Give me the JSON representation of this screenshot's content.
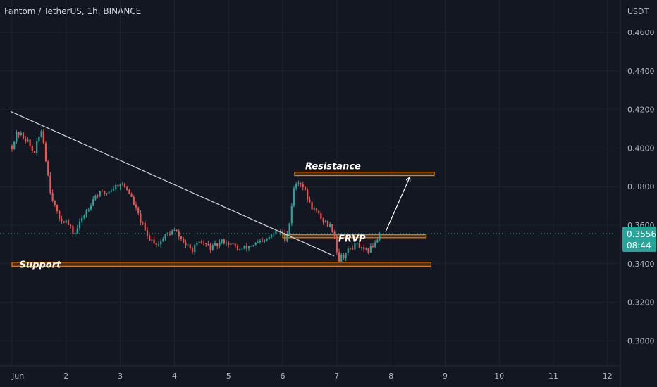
{
  "header": {
    "title": "Fantom / TetherUS, 1h, BINANCE"
  },
  "currency": "USDT",
  "current_price": {
    "value": "0.3556",
    "countdown": "08:44"
  },
  "colors": {
    "background": "#131722",
    "grid": "#1f2330",
    "up": "#26a69a",
    "down": "#ef5350",
    "zone": "#f57c00",
    "trendline": "#d1d4dc",
    "price_line": "#26a69a",
    "axis_text": "#b2b5be"
  },
  "annotations": {
    "resistance_label": "Resistance",
    "support_label": "Support",
    "frvp_label": "FRVP"
  },
  "chart_data": {
    "type": "candlestick",
    "title": "Fantom / TetherUS, 1h, BINANCE",
    "y_unit": "USDT",
    "ylim": [
      0.289,
      0.4695
    ],
    "y_ticks": [
      "0.4600",
      "0.4400",
      "0.4200",
      "0.4000",
      "0.3800",
      "0.3600",
      "0.3400",
      "0.3200",
      "0.3000"
    ],
    "x_ticks": [
      "Jun",
      "2",
      "3",
      "4",
      "5",
      "6",
      "7",
      "8",
      "9",
      "10",
      "11",
      "12"
    ],
    "xlim_days": [
      1,
      12.3
    ],
    "close_path": [
      {
        "day": 1.0,
        "price": 0.401
      },
      {
        "day": 1.1,
        "price": 0.408
      },
      {
        "day": 1.2,
        "price": 0.406
      },
      {
        "day": 1.3,
        "price": 0.403
      },
      {
        "day": 1.4,
        "price": 0.397
      },
      {
        "day": 1.55,
        "price": 0.41
      },
      {
        "day": 1.7,
        "price": 0.379
      },
      {
        "day": 1.85,
        "price": 0.364
      },
      {
        "day": 2.0,
        "price": 0.362
      },
      {
        "day": 2.15,
        "price": 0.355
      },
      {
        "day": 2.3,
        "price": 0.364
      },
      {
        "day": 2.55,
        "price": 0.376
      },
      {
        "day": 2.75,
        "price": 0.377
      },
      {
        "day": 3.0,
        "price": 0.382
      },
      {
        "day": 3.15,
        "price": 0.378
      },
      {
        "day": 3.35,
        "price": 0.364
      },
      {
        "day": 3.5,
        "price": 0.354
      },
      {
        "day": 3.7,
        "price": 0.35
      },
      {
        "day": 3.85,
        "price": 0.355
      },
      {
        "day": 4.0,
        "price": 0.357
      },
      {
        "day": 4.15,
        "price": 0.352
      },
      {
        "day": 4.3,
        "price": 0.347
      },
      {
        "day": 4.5,
        "price": 0.351
      },
      {
        "day": 4.7,
        "price": 0.348
      },
      {
        "day": 4.9,
        "price": 0.352
      },
      {
        "day": 5.05,
        "price": 0.35
      },
      {
        "day": 5.2,
        "price": 0.347
      },
      {
        "day": 5.45,
        "price": 0.35
      },
      {
        "day": 5.65,
        "price": 0.351
      },
      {
        "day": 5.85,
        "price": 0.356
      },
      {
        "day": 5.95,
        "price": 0.357
      },
      {
        "day": 6.05,
        "price": 0.353
      },
      {
        "day": 6.12,
        "price": 0.36
      },
      {
        "day": 6.2,
        "price": 0.378
      },
      {
        "day": 6.27,
        "price": 0.383
      },
      {
        "day": 6.35,
        "price": 0.382
      },
      {
        "day": 6.5,
        "price": 0.371
      },
      {
        "day": 6.7,
        "price": 0.364
      },
      {
        "day": 6.85,
        "price": 0.36
      },
      {
        "day": 6.95,
        "price": 0.357
      },
      {
        "day": 7.02,
        "price": 0.342
      },
      {
        "day": 7.15,
        "price": 0.345
      },
      {
        "day": 7.3,
        "price": 0.349
      },
      {
        "day": 7.4,
        "price": 0.35
      },
      {
        "day": 7.48,
        "price": 0.346
      },
      {
        "day": 7.6,
        "price": 0.347
      },
      {
        "day": 7.7,
        "price": 0.351
      },
      {
        "day": 7.8,
        "price": 0.3556
      }
    ],
    "trendline": {
      "from": {
        "day": 1.0,
        "price": 0.419
      },
      "to": {
        "day": 6.95,
        "price": 0.344
      }
    },
    "zones": [
      {
        "name": "Resistance",
        "day_start": 6.22,
        "day_end": 8.8,
        "price_low": 0.3857,
        "price_high": 0.3875
      },
      {
        "name": "FRVP",
        "day_start": 6.0,
        "day_end": 8.65,
        "price_low": 0.3535,
        "price_high": 0.355
      },
      {
        "name": "Support",
        "day_start": 1.0,
        "day_end": 8.74,
        "price_low": 0.3387,
        "price_high": 0.3407
      }
    ],
    "projection_arrow": {
      "from": {
        "day": 7.9,
        "price": 0.3565
      },
      "to": {
        "day": 8.35,
        "price": 0.385
      }
    },
    "grid": true
  }
}
